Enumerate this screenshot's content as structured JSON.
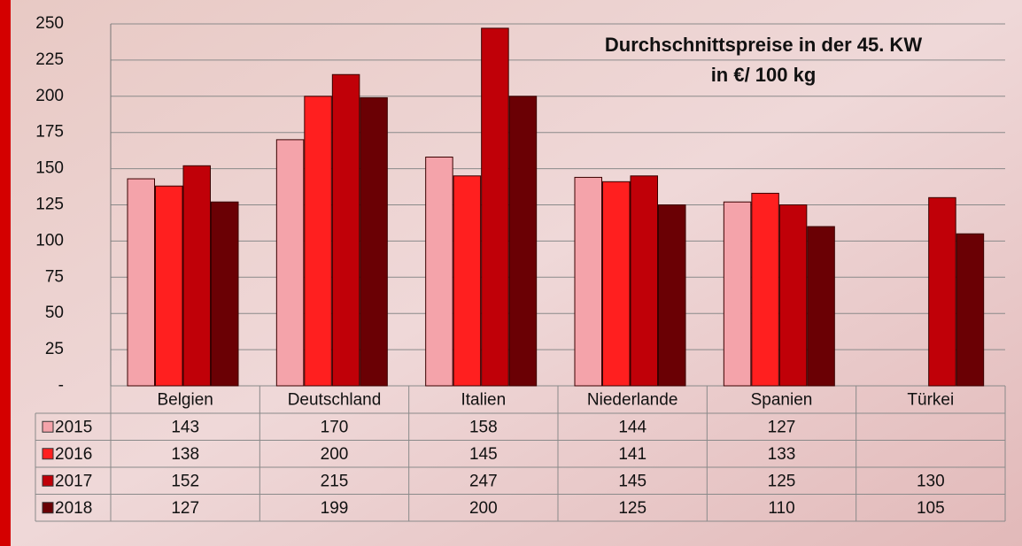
{
  "chart_data": {
    "type": "bar",
    "title": "Durchschnittspreise in der 45. KW",
    "subtitle": "in €/ 100 kg",
    "categories": [
      "Belgien",
      "Deutschland",
      "Italien",
      "Niederlande",
      "Spanien",
      "Türkei"
    ],
    "series": [
      {
        "name": "2015",
        "color": "#f4a3aa",
        "values": [
          143,
          170,
          158,
          144,
          127,
          null
        ]
      },
      {
        "name": "2016",
        "color": "#ff1f1f",
        "values": [
          138,
          200,
          145,
          141,
          133,
          null
        ]
      },
      {
        "name": "2017",
        "color": "#c00008",
        "values": [
          152,
          215,
          247,
          145,
          125,
          130
        ]
      },
      {
        "name": "2018",
        "color": "#6a0004",
        "values": [
          127,
          199,
          200,
          125,
          110,
          105
        ]
      }
    ],
    "ylim": [
      0,
      250
    ],
    "yticks": [
      {
        "value": 0,
        "label": "-"
      },
      25,
      50,
      75,
      100,
      125,
      150,
      175,
      200,
      225,
      250
    ],
    "grid": true
  }
}
